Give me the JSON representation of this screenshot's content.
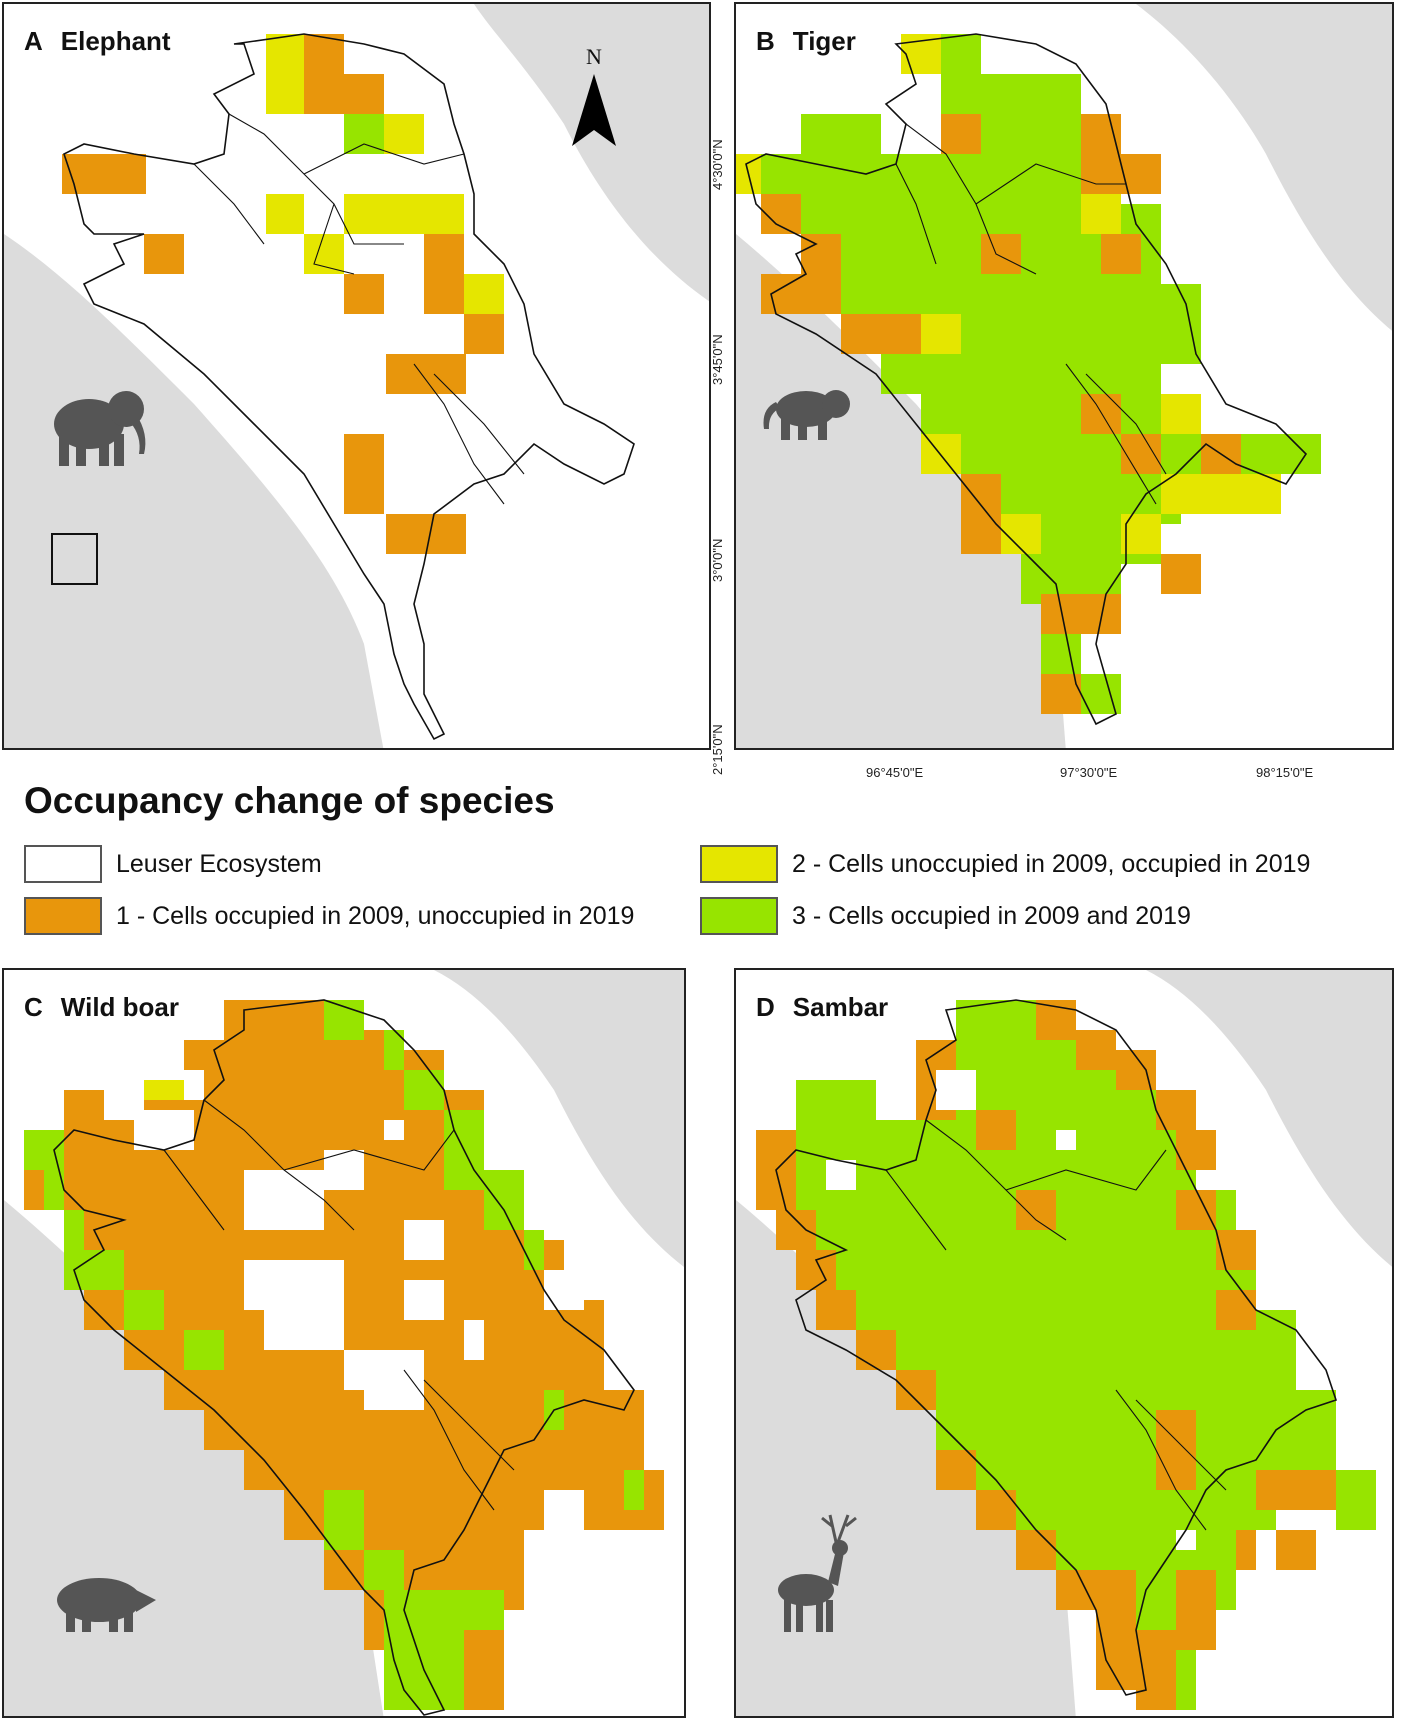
{
  "colors": {
    "sea": "#dcdcdc",
    "land": "#ffffff",
    "cat1": "#e8960c",
    "cat2": "#e5e600",
    "cat3": "#97e400",
    "boundary": "#111111",
    "icon": "#555555"
  },
  "panels": [
    {
      "letter": "A",
      "species": "Elephant",
      "icon": "elephant-icon"
    },
    {
      "letter": "B",
      "species": "Tiger",
      "icon": "tiger-icon"
    },
    {
      "letter": "C",
      "species": "Wild boar",
      "icon": "boar-icon"
    },
    {
      "letter": "D",
      "species": "Sambar",
      "icon": "deer-icon"
    }
  ],
  "north_label": "N",
  "axes": {
    "lat_ticks": [
      "4°30'0\"N",
      "3°45'0\"N",
      "3°0'0\"N",
      "2°15'0\"N"
    ],
    "lon_ticks": [
      "96°45'0\"E",
      "97°30'0\"E",
      "98°15'0\"E"
    ]
  },
  "legend": {
    "title": "Occupancy change of species",
    "items": [
      {
        "label": "Leuser Ecosystem",
        "color": "#ffffff"
      },
      {
        "label": "1 - Cells occupied in 2009, unoccupied in 2019",
        "color": "#e8960c"
      },
      {
        "label": "2 - Cells unoccupied in 2009, occupied in 2019",
        "color": "#e5e600"
      },
      {
        "label": "3 - Cells occupied in 2009 and 2019",
        "color": "#97e400"
      }
    ]
  }
}
